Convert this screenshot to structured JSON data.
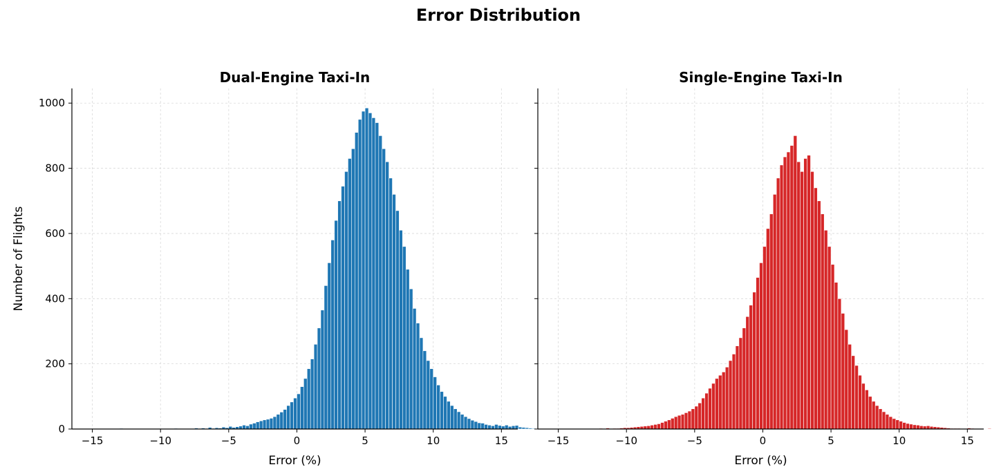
{
  "figure": {
    "title": "Error Distribution"
  },
  "chart_data": [
    {
      "type": "bar",
      "title": "Dual-Engine Taxi-In",
      "xlabel": "Error (%)",
      "ylabel": "Number of Flights",
      "xlim": [
        -16.5,
        16.2
      ],
      "ylim": [
        0,
        1045
      ],
      "xticks": [
        -15,
        -10,
        -5,
        0,
        5,
        10,
        15
      ],
      "yticks": [
        0,
        200,
        400,
        600,
        800,
        1000
      ],
      "xtick_labels": [
        "−15",
        "−10",
        "−5",
        "0",
        "5",
        "10",
        "15"
      ],
      "ytick_labels": [
        "0",
        "200",
        "400",
        "600",
        "800",
        "1000"
      ],
      "grid": true,
      "color": "#1f77b4",
      "bin_start": -15.25,
      "bin_width": 0.25,
      "values": [
        0,
        0,
        0,
        0,
        0,
        0,
        0,
        0,
        0,
        2,
        0,
        0,
        0,
        0,
        0,
        0,
        0,
        0,
        0,
        0,
        0,
        0,
        0,
        0,
        0,
        2,
        0,
        0,
        0,
        0,
        0,
        3,
        0,
        3,
        0,
        5,
        2,
        4,
        3,
        6,
        4,
        8,
        5,
        7,
        9,
        12,
        10,
        15,
        18,
        22,
        25,
        28,
        30,
        33,
        38,
        45,
        52,
        60,
        72,
        83,
        95,
        108,
        130,
        155,
        185,
        215,
        260,
        310,
        365,
        440,
        510,
        580,
        640,
        700,
        745,
        790,
        830,
        860,
        910,
        950,
        975,
        985,
        970,
        955,
        940,
        900,
        860,
        820,
        770,
        720,
        670,
        610,
        560,
        490,
        430,
        370,
        325,
        280,
        240,
        210,
        185,
        160,
        135,
        115,
        100,
        85,
        72,
        62,
        53,
        45,
        38,
        32,
        27,
        23,
        19,
        18,
        14,
        12,
        10,
        14,
        11,
        9,
        12,
        8,
        10,
        11,
        6,
        5,
        4,
        3,
        2,
        1,
        1,
        0,
        0,
        0,
        0,
        0,
        0,
        0,
        0,
        0
      ]
    },
    {
      "type": "bar",
      "title": "Single-Engine Taxi-In",
      "xlabel": "Error (%)",
      "ylabel": "",
      "xlim": [
        -16.5,
        16.2
      ],
      "ylim": [
        0,
        1045
      ],
      "xticks": [
        -15,
        -10,
        -5,
        0,
        5,
        10,
        15
      ],
      "yticks": [
        0,
        200,
        400,
        600,
        800,
        1000
      ],
      "xtick_labels": [
        "−15",
        "−10",
        "−5",
        "0",
        "5",
        "10",
        "15"
      ],
      "ytick_labels": [],
      "grid": true,
      "color": "#d62728",
      "bin_start": -15.25,
      "bin_width": 0.25,
      "values": [
        0,
        0,
        0,
        0,
        0,
        0,
        0,
        0,
        0,
        0,
        0,
        0,
        0,
        2,
        0,
        3,
        0,
        2,
        2,
        3,
        4,
        4,
        5,
        6,
        7,
        8,
        9,
        10,
        12,
        14,
        16,
        20,
        24,
        28,
        33,
        38,
        42,
        45,
        50,
        55,
        62,
        70,
        80,
        95,
        110,
        125,
        140,
        155,
        165,
        175,
        190,
        210,
        230,
        255,
        280,
        310,
        345,
        380,
        420,
        465,
        510,
        560,
        615,
        660,
        720,
        770,
        810,
        835,
        850,
        870,
        900,
        820,
        790,
        830,
        840,
        790,
        740,
        700,
        660,
        610,
        560,
        505,
        450,
        400,
        355,
        305,
        260,
        225,
        195,
        165,
        140,
        120,
        100,
        85,
        72,
        62,
        53,
        45,
        38,
        32,
        28,
        24,
        20,
        17,
        15,
        13,
        12,
        10,
        9,
        10,
        8,
        7,
        6,
        5,
        4,
        3,
        2,
        2,
        2,
        1,
        1,
        3,
        2,
        1,
        1,
        1,
        0,
        2,
        0,
        0,
        0,
        0,
        0
      ]
    }
  ]
}
